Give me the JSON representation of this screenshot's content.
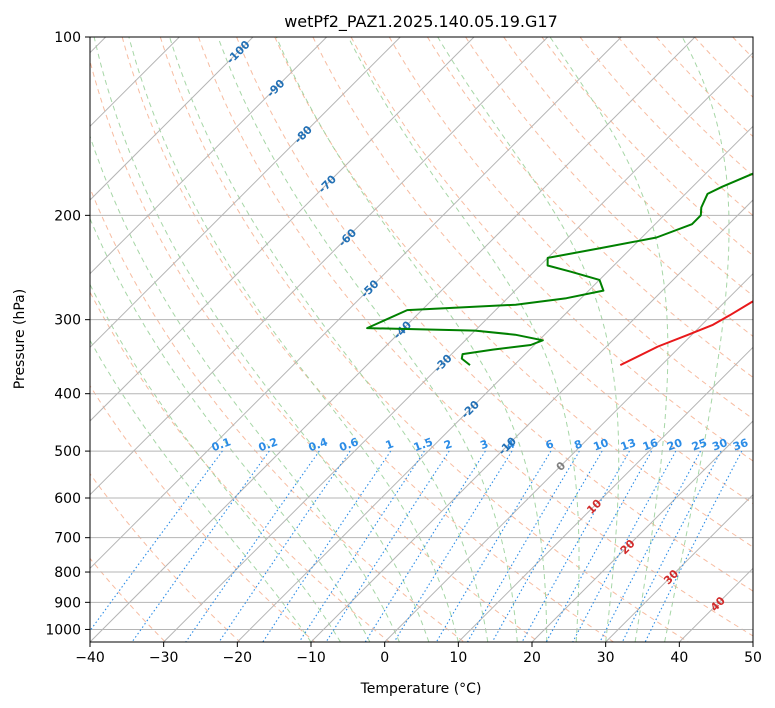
{
  "chart_data": {
    "type": "line",
    "title": "wetPf2_PAZ1.2025.140.05.19.G17",
    "xlabel": "Temperature (°C)",
    "ylabel": "Pressure (hPa)",
    "xlim": [
      -40,
      50
    ],
    "ylim": [
      1050,
      100
    ],
    "y_scale": "log",
    "skew_t": true,
    "x_ticks": [
      -40,
      -30,
      -20,
      -10,
      0,
      10,
      20,
      30,
      40,
      50
    ],
    "x_tick_labels": [
      "−40",
      "−30",
      "−20",
      "−10",
      "0",
      "10",
      "20",
      "30",
      "40",
      "50"
    ],
    "y_ticks": [
      100,
      200,
      300,
      400,
      500,
      600,
      700,
      800,
      900,
      1000
    ],
    "y_tick_labels": [
      "100",
      "200",
      "300",
      "400",
      "500",
      "600",
      "700",
      "800",
      "900",
      "1000"
    ],
    "grid": true,
    "colors": {
      "temperature": "#e8191b",
      "dewpoint": "#008000",
      "isotherm": "#b5b5b5",
      "dry_adiabat": "#f4a582",
      "moist_adiabat": "#96cf96",
      "mixing_ratio": "#2b8ce6",
      "isotherm_label": "#2270b5",
      "mixing_ratio_label": "#2b8ce6",
      "warm_label": "#d12a2a",
      "zero_label": "#808080"
    },
    "series": [
      {
        "name": "",
        "color": "#e8191b",
        "points": [
          [
            -5.6,
            358
          ],
          [
            -3,
            333
          ],
          [
            -0.5,
            318
          ],
          [
            1.5,
            306
          ],
          [
            2.5,
            295
          ],
          [
            3.7,
            280
          ],
          [
            6,
            262
          ],
          [
            9.5,
            244
          ],
          [
            12.5,
            230
          ],
          [
            14.5,
            217
          ],
          [
            16.3,
            200
          ],
          [
            18,
            183
          ],
          [
            20.2,
            168
          ],
          [
            24.5,
            154
          ],
          [
            27.7,
            143
          ],
          [
            28.6,
            137
          ],
          [
            29,
            129
          ],
          [
            31,
            115
          ],
          [
            32.5,
            107
          ],
          [
            34,
            100
          ]
        ]
      },
      {
        "name": "",
        "color": "#008000",
        "points": [
          [
            -26,
            358
          ],
          [
            -28,
            349
          ],
          [
            -28.5,
            343
          ],
          [
            -25,
            337
          ],
          [
            -20.5,
            331
          ],
          [
            -19.5,
            325
          ],
          [
            -24,
            318
          ],
          [
            -30,
            313
          ],
          [
            -45,
            310
          ],
          [
            -42,
            289
          ],
          [
            -28,
            283
          ],
          [
            -22,
            276
          ],
          [
            -18,
            268
          ],
          [
            -20,
            257
          ],
          [
            -25,
            249
          ],
          [
            -29,
            243
          ],
          [
            -30,
            236
          ],
          [
            -24,
            227
          ],
          [
            -18,
            218
          ],
          [
            -15,
            207
          ],
          [
            -15,
            200
          ],
          [
            -16,
            194
          ],
          [
            -17,
            184
          ],
          [
            -16,
            179
          ],
          [
            -13,
            168
          ],
          [
            -10,
            150
          ],
          [
            -8.5,
            133
          ],
          [
            -7,
            117
          ],
          [
            -5.5,
            108
          ],
          [
            -4.5,
            100
          ]
        ]
      }
    ],
    "isotherm_labels": [
      "-100",
      "-90",
      "-80",
      "-70",
      "-60",
      "-50",
      "-40",
      "-30",
      "-20",
      "-10",
      "0",
      "10",
      "20",
      "30",
      "40"
    ],
    "mixing_ratio_labels": [
      "0.1",
      "0.2",
      "0.4",
      "0.6",
      "1",
      "1.5",
      "2",
      "3",
      "4",
      "6",
      "8",
      "10",
      "13",
      "16",
      "20",
      "25",
      "30",
      "36"
    ]
  }
}
